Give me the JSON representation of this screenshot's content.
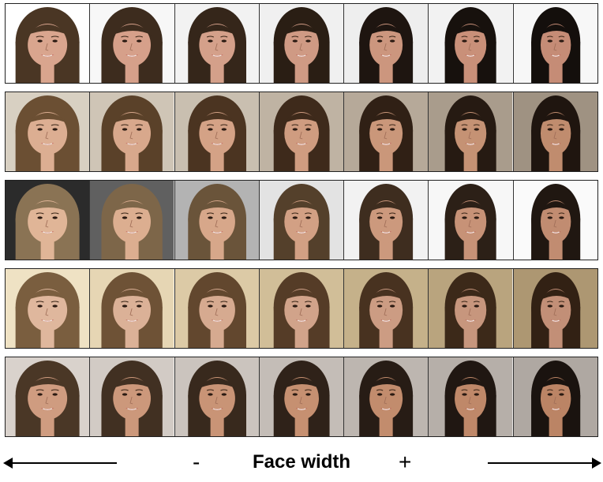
{
  "caption": {
    "label": "Face width",
    "minus": "-",
    "plus": "+"
  },
  "rows": [
    {
      "name": "row-1",
      "backgrounds": [
        "#ffffff",
        "#f7f7f7",
        "#f2f2f2",
        "#f0f0f0",
        "#eeeeee",
        "#f2f2f2",
        "#f7f7f7"
      ],
      "hair": [
        "#4a3624",
        "#3d2c1e",
        "#35261a",
        "#2a1e14",
        "#1e1510",
        "#17110d",
        "#140f0c"
      ],
      "skin": [
        "#d9a58e",
        "#d6a08a",
        "#d4a08a",
        "#cf9a84",
        "#cc967e",
        "#c99079",
        "#c58c76"
      ],
      "face_width": [
        1.12,
        1.07,
        1.02,
        0.98,
        0.94,
        0.9,
        0.86
      ]
    },
    {
      "name": "row-2",
      "backgrounds": [
        "#d8d0c2",
        "#cfc5b6",
        "#c9bfb0",
        "#bfb3a3",
        "#b6a999",
        "#a99c8c",
        "#9f9282"
      ],
      "hair": [
        "#6b4f33",
        "#5a4129",
        "#4b3421",
        "#3e2a1b",
        "#302015",
        "#261a12",
        "#1f150f"
      ],
      "skin": [
        "#dcae92",
        "#d8a88c",
        "#d4a286",
        "#cf9c80",
        "#ca977a",
        "#c59274",
        "#c08c6e"
      ],
      "face_width": [
        1.12,
        1.07,
        1.02,
        0.98,
        0.94,
        0.9,
        0.86
      ]
    },
    {
      "name": "row-3",
      "backgrounds": [
        "#2b2b2b",
        "#606060",
        "#b3b3b3",
        "#e3e3e3",
        "#f2f2f2",
        "#f7f7f7",
        "#fafafa"
      ],
      "hair": [
        "#8a7354",
        "#7d6649",
        "#6a543a",
        "#54402b",
        "#3e2d1f",
        "#2c2017",
        "#201711"
      ],
      "skin": [
        "#e0b597",
        "#dcae90",
        "#d7a78a",
        "#d2a084",
        "#cc997d",
        "#c79277",
        "#c18c71"
      ],
      "face_width": [
        1.12,
        1.07,
        1.02,
        0.98,
        0.94,
        0.9,
        0.86
      ]
    },
    {
      "name": "row-4",
      "backgrounds": [
        "#efe2c4",
        "#e6d6b4",
        "#dccaa6",
        "#d1be98",
        "#c5b18a",
        "#b9a47e",
        "#ad9772"
      ],
      "hair": [
        "#7a5e3f",
        "#6e5236",
        "#62472e",
        "#553c27",
        "#483220",
        "#3c2919",
        "#322114"
      ],
      "skin": [
        "#dfb79d",
        "#dbb197",
        "#d6aa90",
        "#d1a38a",
        "#cc9c83",
        "#c7967d",
        "#c28f77"
      ],
      "face_width": [
        1.12,
        1.07,
        1.02,
        0.98,
        0.94,
        0.9,
        0.86
      ]
    },
    {
      "name": "row-5",
      "backgrounds": [
        "#d9d2cc",
        "#d2cbc5",
        "#cbc4be",
        "#c4bdb7",
        "#bdb6b0",
        "#b6afa9",
        "#afa8a2"
      ],
      "hair": [
        "#4a3726",
        "#413022",
        "#38291d",
        "#2f2219",
        "#271c15",
        "#201712",
        "#1a130f"
      ],
      "skin": [
        "#cf9c80",
        "#cc987b",
        "#c99476",
        "#c69071",
        "#c28c6d",
        "#bf8869",
        "#bb8465"
      ],
      "face_width": [
        1.12,
        1.07,
        1.02,
        0.98,
        0.94,
        0.9,
        0.86
      ]
    }
  ]
}
